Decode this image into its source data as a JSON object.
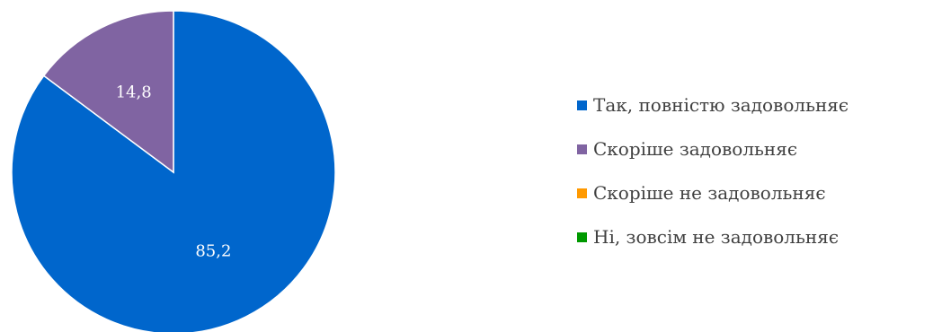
{
  "chart_data": {
    "type": "pie",
    "slices": [
      {
        "name": "Так, повністю задовольняє",
        "value": 85.2,
        "label": "85,2",
        "color": "#0066CC"
      },
      {
        "name": "Скоріше задовольняє",
        "value": 14.8,
        "label": "14,8",
        "color": "#8064A2"
      },
      {
        "name": "Скоріше не задовольняє",
        "value": 0,
        "label": "",
        "color": "#FF9900"
      },
      {
        "name": "Ні, зовсім не задовольняє",
        "value": 0,
        "label": "",
        "color": "#009900"
      }
    ],
    "legend_position": "right",
    "start_angle": "top",
    "direction": "clockwise"
  }
}
